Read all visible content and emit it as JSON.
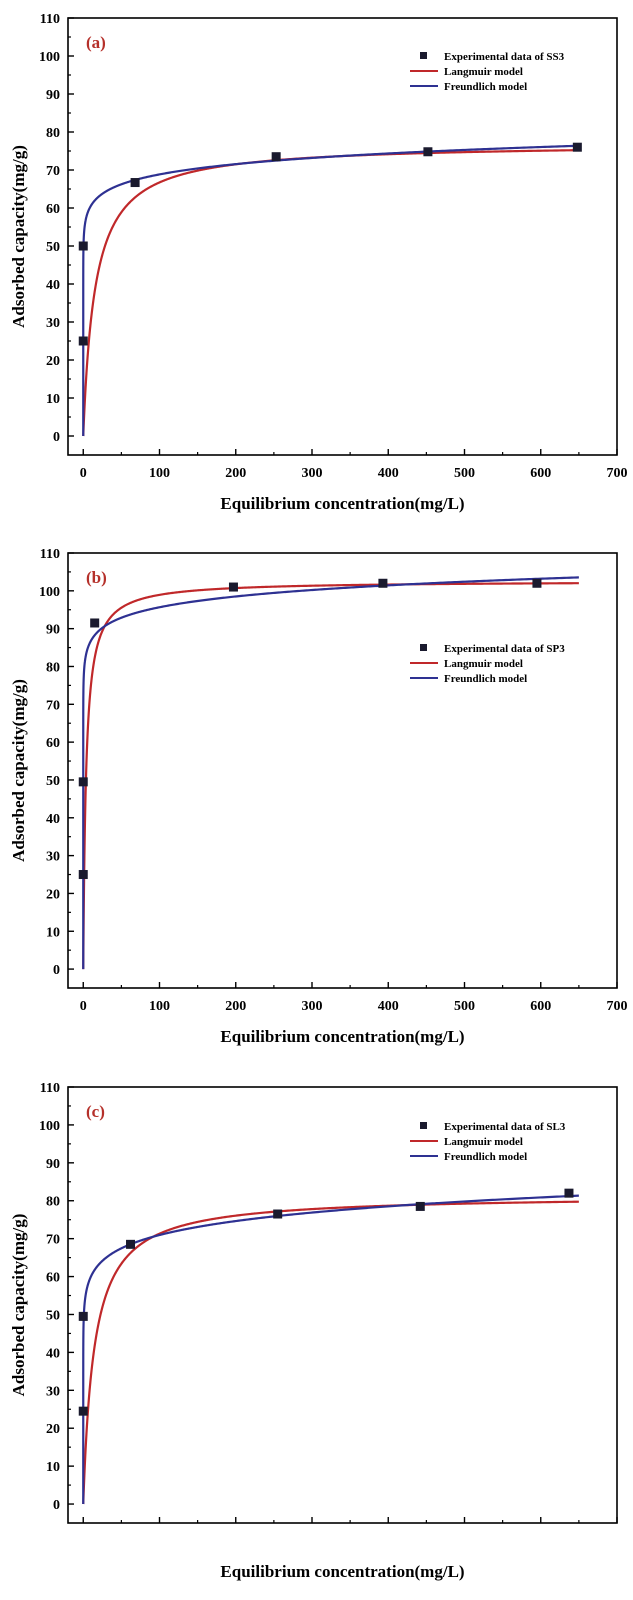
{
  "chart_data": [
    {
      "type": "line",
      "panel_label": "(a)",
      "xlabel": "Equilibrium concentration(mg/L)",
      "ylabel": "Adsorbed capacity(mg/g)",
      "xlim": [
        -20,
        700
      ],
      "ylim": [
        -5,
        110
      ],
      "xticks": [
        0,
        100,
        200,
        300,
        400,
        500,
        600,
        700
      ],
      "yticks": [
        0,
        10,
        20,
        30,
        40,
        50,
        60,
        70,
        80,
        90,
        100,
        110
      ],
      "show_x_tick_labels": true,
      "legend_position": "top-right",
      "colors": {
        "langmuir": "#c0282a",
        "freundlich": "#2e3192",
        "experimental": "#1a1a2e",
        "panel_label": "#b5302a"
      },
      "series": [
        {
          "name": "Experimental data of SS3",
          "kind": "scatter",
          "x": [
            0,
            0,
            68,
            253,
            452,
            648
          ],
          "y": [
            25,
            50,
            66.7,
            73.5,
            74.8,
            76
          ]
        },
        {
          "name": "Langmuir model",
          "kind": "line",
          "model": "langmuir",
          "params": {
            "qm": 77,
            "K": 0.065
          }
        },
        {
          "name": "Freundlich model",
          "kind": "line",
          "model": "freundlich",
          "params": {
            "Kf": 53.3,
            "n": 18
          }
        }
      ]
    },
    {
      "type": "line",
      "panel_label": "(b)",
      "xlabel": "Equilibrium concentration(mg/L)",
      "ylabel": "Adsorbed capacity(mg/g)",
      "xlim": [
        -20,
        700
      ],
      "ylim": [
        -5,
        110
      ],
      "xticks": [
        0,
        100,
        200,
        300,
        400,
        500,
        600,
        700
      ],
      "yticks": [
        0,
        10,
        20,
        30,
        40,
        50,
        60,
        70,
        80,
        90,
        100,
        110
      ],
      "show_x_tick_labels": true,
      "legend_position": "center-right",
      "colors": {
        "langmuir": "#c0282a",
        "freundlich": "#2e3192",
        "experimental": "#1a1a2e",
        "panel_label": "#b5302a"
      },
      "series": [
        {
          "name": "Experimental data of SP3",
          "kind": "scatter",
          "x": [
            0,
            0,
            15,
            197,
            393,
            595
          ],
          "y": [
            25,
            49.5,
            91.5,
            101,
            102,
            102
          ]
        },
        {
          "name": "Langmuir model",
          "kind": "line",
          "model": "langmuir",
          "params": {
            "qm": 102.6,
            "K": 0.27
          }
        },
        {
          "name": "Freundlich model",
          "kind": "line",
          "model": "freundlich",
          "params": {
            "Kf": 78.7,
            "n": 23.6
          }
        }
      ]
    },
    {
      "type": "line",
      "panel_label": "(c)",
      "xlabel": "Equilibrium concentration(mg/L)",
      "ylabel": "Adsorbed capacity(mg/g)",
      "xlim": [
        -20,
        700
      ],
      "ylim": [
        -5,
        110
      ],
      "xticks": [
        0,
        100,
        200,
        300,
        400,
        500,
        600,
        700
      ],
      "yticks": [
        0,
        10,
        20,
        30,
        40,
        50,
        60,
        70,
        80,
        90,
        100,
        110
      ],
      "show_x_tick_labels": false,
      "legend_position": "top-right",
      "colors": {
        "langmuir": "#c0282a",
        "freundlich": "#2e3192",
        "experimental": "#1a1a2e",
        "panel_label": "#b5302a"
      },
      "series": [
        {
          "name": "Experimental data of SL3",
          "kind": "scatter",
          "x": [
            0,
            0,
            62,
            255,
            442,
            637
          ],
          "y": [
            24.5,
            49.5,
            68.5,
            76.5,
            78.5,
            82
          ]
        },
        {
          "name": "Langmuir model",
          "kind": "line",
          "model": "langmuir",
          "params": {
            "qm": 81.5,
            "K": 0.07
          }
        },
        {
          "name": "Freundlich model",
          "kind": "line",
          "model": "freundlich",
          "params": {
            "Kf": 50.7,
            "n": 13.7
          }
        }
      ]
    }
  ]
}
